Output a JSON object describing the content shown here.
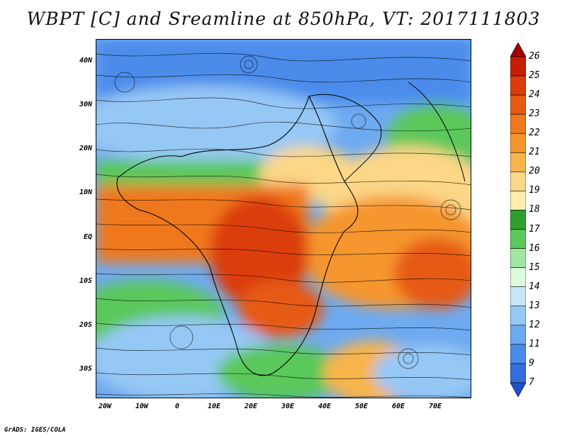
{
  "title": "WBPT [C] and Sreamline at 850hPa, VT: 2017111803",
  "credit": "GrADS: IGES/COLA",
  "map": {
    "y_axis_labels": [
      "40N",
      "30N",
      "20N",
      "10N",
      "EQ",
      "10S",
      "20S",
      "30S"
    ],
    "x_axis_labels": [
      "20W",
      "10W",
      "0",
      "10E",
      "20E",
      "30E",
      "40E",
      "50E",
      "60E",
      "70E"
    ]
  },
  "colorbar": {
    "labels": [
      "26",
      "25",
      "24",
      "23",
      "22",
      "21",
      "20",
      "19",
      "18",
      "17",
      "16",
      "15",
      "14",
      "13",
      "12",
      "11",
      "9",
      "7"
    ],
    "colors": [
      "#a50000",
      "#c81e00",
      "#dc3c0a",
      "#e65a14",
      "#f0781e",
      "#f5962d",
      "#f8b44b",
      "#fbd787",
      "#fdeead",
      "#2da02d",
      "#5ac85a",
      "#a0e6a0",
      "#dcfadc",
      "#c8e6fa",
      "#96c8f5",
      "#6eaaf0",
      "#4b8ceb",
      "#326edc",
      "#1e50c8"
    ]
  }
}
